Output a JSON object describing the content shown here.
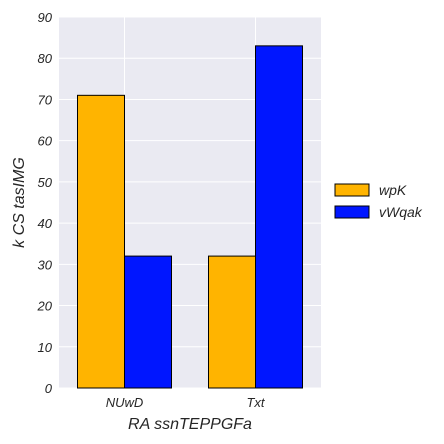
{
  "chart_data": {
    "type": "bar",
    "categories": [
      "NUwD",
      "Txt"
    ],
    "series": [
      {
        "name": "wpK",
        "values": [
          71,
          32
        ],
        "color": "#ffb400"
      },
      {
        "name": "vWqak",
        "values": [
          32,
          83
        ],
        "color": "#0016ff"
      }
    ],
    "xlabel": "RA ssnTEPPGFa",
    "ylabel": "k CS  tasIMG",
    "ylim": [
      0,
      90
    ],
    "yticks": [
      0,
      10,
      20,
      30,
      40,
      50,
      60,
      70,
      80,
      90
    ],
    "grid": true,
    "legend": "right",
    "background": "#eaeaf2"
  }
}
